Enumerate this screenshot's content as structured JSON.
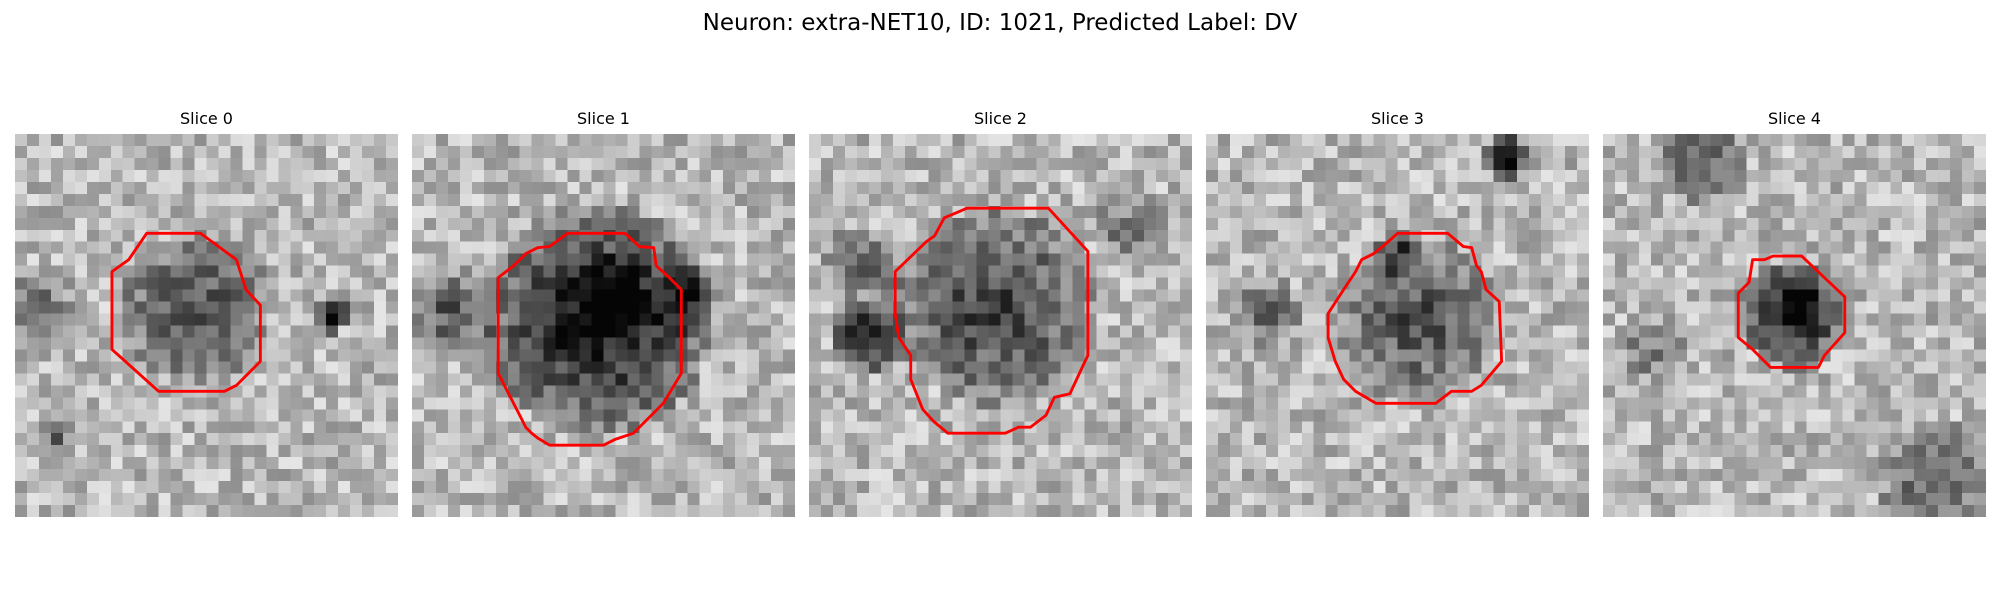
{
  "figure": {
    "title": "Neuron: extra-NET10, ID: 1021, Predicted Label: DV"
  },
  "colors": {
    "contour": "#ff0000",
    "background": "#ffffff"
  },
  "slices": [
    {
      "title": "Slice 0"
    },
    {
      "title": "Slice 1"
    },
    {
      "title": "Slice 2"
    },
    {
      "title": "Slice 3"
    },
    {
      "title": "Slice 4"
    }
  ]
}
